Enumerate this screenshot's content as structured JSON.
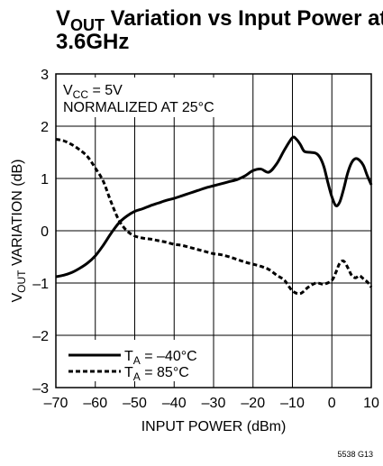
{
  "chart_data": {
    "type": "line",
    "title": {
      "part1": "V",
      "part1_sub": "OUT",
      "part2": " Variation vs Input Power at",
      "line2": "3.6GHz"
    },
    "xlabel": "INPUT POWER (dBm)",
    "ylabel": {
      "main": "V",
      "sub": "OUT",
      "rest": " VARIATION (dB)"
    },
    "xlim": [
      -70,
      10
    ],
    "ylim": [
      -3,
      3
    ],
    "xticks": [
      "–70",
      "–60",
      "–50",
      "–40",
      "–30",
      "–20",
      "–10",
      "0",
      "10"
    ],
    "yticks": [
      "3",
      "2",
      "1",
      "0",
      "–1",
      "–2",
      "–3"
    ],
    "grid": true,
    "conditions": {
      "line1": {
        "main": "V",
        "sub": "CC",
        "rest": " = 5V"
      },
      "line2": "NORMALIZED AT 25°C"
    },
    "legend_position": "bottom-left",
    "series": [
      {
        "name": {
          "main": "T",
          "sub": "A",
          "rest": " = –40°C"
        },
        "style": "solid",
        "color": "#000000",
        "points": [
          [
            -70,
            -0.88
          ],
          [
            -68,
            -0.85
          ],
          [
            -66,
            -0.8
          ],
          [
            -64,
            -0.72
          ],
          [
            -62,
            -0.62
          ],
          [
            -60,
            -0.48
          ],
          [
            -58,
            -0.28
          ],
          [
            -56,
            -0.05
          ],
          [
            -54,
            0.15
          ],
          [
            -52,
            0.28
          ],
          [
            -50,
            0.37
          ],
          [
            -48,
            0.42
          ],
          [
            -46,
            0.48
          ],
          [
            -44,
            0.53
          ],
          [
            -42,
            0.58
          ],
          [
            -40,
            0.62
          ],
          [
            -38,
            0.67
          ],
          [
            -36,
            0.72
          ],
          [
            -34,
            0.77
          ],
          [
            -32,
            0.82
          ],
          [
            -30,
            0.86
          ],
          [
            -28,
            0.9
          ],
          [
            -26,
            0.94
          ],
          [
            -24,
            0.98
          ],
          [
            -22,
            1.05
          ],
          [
            -20,
            1.15
          ],
          [
            -18,
            1.18
          ],
          [
            -16,
            1.12
          ],
          [
            -14,
            1.28
          ],
          [
            -12,
            1.55
          ],
          [
            -10,
            1.78
          ],
          [
            -9,
            1.75
          ],
          [
            -8,
            1.65
          ],
          [
            -7,
            1.52
          ],
          [
            -5.5,
            1.5
          ],
          [
            -4,
            1.48
          ],
          [
            -3,
            1.4
          ],
          [
            -2,
            1.22
          ],
          [
            -1,
            0.92
          ],
          [
            0,
            0.65
          ],
          [
            1,
            0.48
          ],
          [
            2,
            0.55
          ],
          [
            3,
            0.8
          ],
          [
            4,
            1.1
          ],
          [
            5,
            1.3
          ],
          [
            6,
            1.38
          ],
          [
            7,
            1.35
          ],
          [
            8,
            1.25
          ],
          [
            9,
            1.05
          ],
          [
            10,
            0.88
          ]
        ]
      },
      {
        "name": {
          "main": "T",
          "sub": "A",
          "rest": " = 85°C"
        },
        "style": "dashed",
        "color": "#000000",
        "points": [
          [
            -70,
            1.75
          ],
          [
            -68,
            1.72
          ],
          [
            -66,
            1.65
          ],
          [
            -64,
            1.55
          ],
          [
            -62,
            1.42
          ],
          [
            -60,
            1.2
          ],
          [
            -58,
            0.95
          ],
          [
            -56,
            0.55
          ],
          [
            -54,
            0.2
          ],
          [
            -52,
            0.0
          ],
          [
            -50,
            -0.1
          ],
          [
            -48,
            -0.14
          ],
          [
            -46,
            -0.16
          ],
          [
            -44,
            -0.19
          ],
          [
            -42,
            -0.22
          ],
          [
            -40,
            -0.26
          ],
          [
            -38,
            -0.28
          ],
          [
            -36,
            -0.32
          ],
          [
            -34,
            -0.36
          ],
          [
            -32,
            -0.4
          ],
          [
            -30,
            -0.44
          ],
          [
            -28,
            -0.46
          ],
          [
            -26,
            -0.5
          ],
          [
            -24,
            -0.55
          ],
          [
            -22,
            -0.6
          ],
          [
            -20,
            -0.64
          ],
          [
            -18,
            -0.68
          ],
          [
            -16,
            -0.74
          ],
          [
            -14,
            -0.85
          ],
          [
            -12,
            -0.95
          ],
          [
            -10,
            -1.15
          ],
          [
            -8,
            -1.2
          ],
          [
            -6,
            -1.08
          ],
          [
            -4,
            -1.0
          ],
          [
            -2,
            -1.02
          ],
          [
            0,
            -0.95
          ],
          [
            1,
            -0.8
          ],
          [
            2,
            -0.62
          ],
          [
            3,
            -0.58
          ],
          [
            4,
            -0.7
          ],
          [
            5,
            -0.85
          ],
          [
            6,
            -0.9
          ],
          [
            7,
            -0.86
          ],
          [
            8,
            -0.92
          ],
          [
            9,
            -0.98
          ],
          [
            10,
            -1.08
          ]
        ]
      }
    ]
  },
  "figure_id": "5538 G13"
}
